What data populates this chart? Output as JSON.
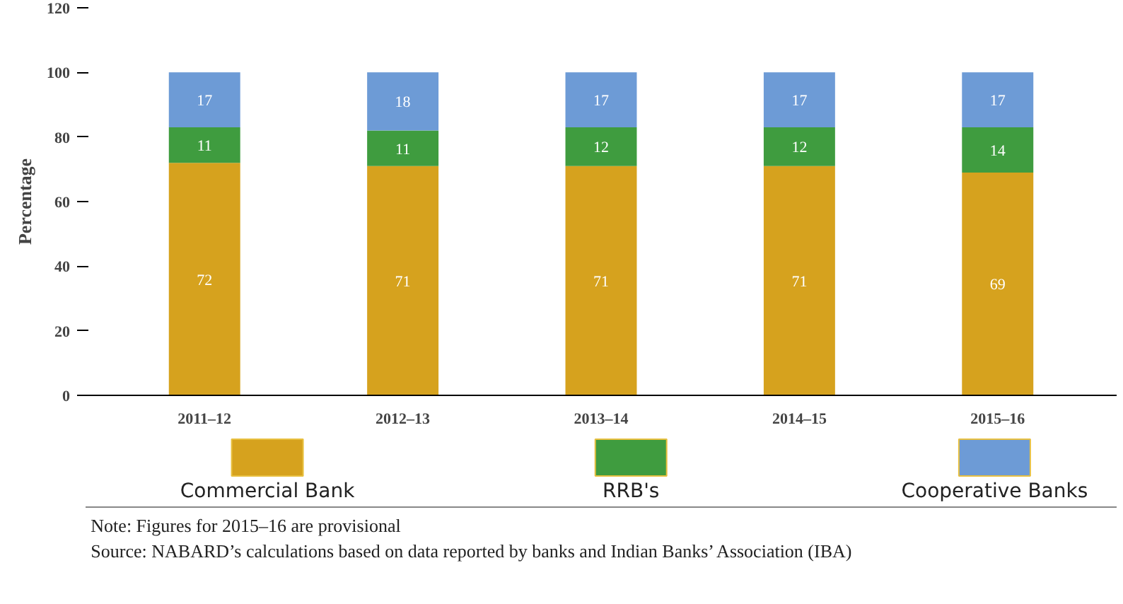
{
  "chart_data": {
    "type": "bar",
    "stacked": true,
    "ylabel": "Percentage",
    "categories": [
      "2011–12",
      "2012–13",
      "2013–14",
      "2014–15",
      "2015–16"
    ],
    "series": [
      {
        "name": "Commercial Bank",
        "color": "#d6a21e",
        "values": [
          72,
          71,
          71,
          71,
          69
        ]
      },
      {
        "name": "RRB's",
        "color": "#3f9c3f",
        "values": [
          11,
          11,
          12,
          12,
          14
        ]
      },
      {
        "name": "Cooperative Banks",
        "color": "#6d9bd6",
        "values": [
          17,
          18,
          17,
          17,
          17
        ]
      }
    ],
    "ylim": [
      0,
      120
    ],
    "yticks": [
      0,
      20,
      40,
      60,
      80,
      100,
      120
    ],
    "grid": false,
    "data_labels": true,
    "legend": "bottom",
    "annotations": [
      "Note: Figures for 2015–16 are provisional",
      "Source: NABARD’s calculations based on data reported by banks and Indian Banks’ Association (IBA)"
    ]
  }
}
